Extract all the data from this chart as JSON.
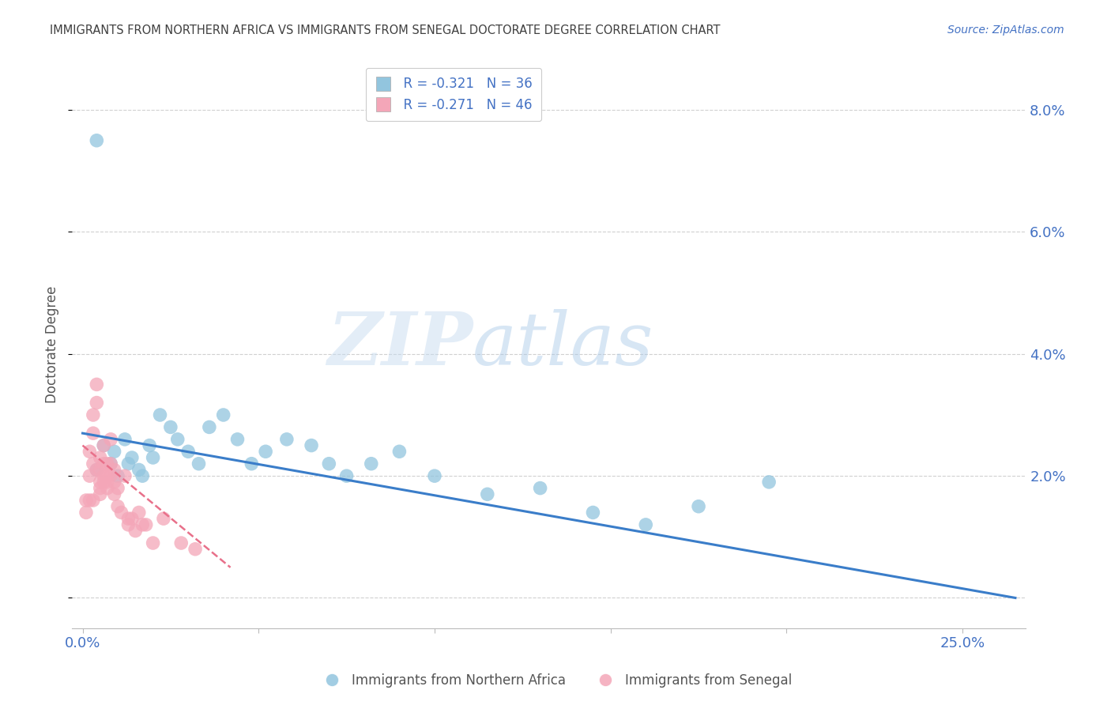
{
  "title": "IMMIGRANTS FROM NORTHERN AFRICA VS IMMIGRANTS FROM SENEGAL DOCTORATE DEGREE CORRELATION CHART",
  "source": "Source: ZipAtlas.com",
  "ylabel_left": "Doctorate Degree",
  "x_ticks": [
    0.0,
    0.05,
    0.1,
    0.15,
    0.2,
    0.25
  ],
  "x_tick_labels_show": [
    "0.0%",
    "",
    "",
    "",
    "",
    "25.0%"
  ],
  "y_ticks_right": [
    0.0,
    0.02,
    0.04,
    0.06,
    0.08
  ],
  "y_tick_labels_right": [
    "",
    "2.0%",
    "4.0%",
    "6.0%",
    "8.0%"
  ],
  "xlim": [
    -0.003,
    0.268
  ],
  "ylim": [
    -0.005,
    0.088
  ],
  "R_blue": -0.321,
  "N_blue": 36,
  "R_pink": -0.271,
  "N_pink": 46,
  "legend_label_blue": "Immigrants from Northern Africa",
  "legend_label_pink": "Immigrants from Senegal",
  "blue_color": "#92c5de",
  "pink_color": "#f4a6b8",
  "trend_blue_color": "#3a7dc9",
  "trend_pink_color": "#e8708a",
  "watermark_zip": "ZIP",
  "watermark_atlas": "atlas",
  "background_color": "#ffffff",
  "grid_color": "#d0d0d0",
  "title_color": "#404040",
  "source_color": "#4472c4",
  "tick_label_color": "#4472c4",
  "blue_x": [
    0.004,
    0.006,
    0.008,
    0.009,
    0.01,
    0.012,
    0.013,
    0.014,
    0.016,
    0.017,
    0.019,
    0.02,
    0.022,
    0.025,
    0.027,
    0.03,
    0.033,
    0.036,
    0.04,
    0.044,
    0.048,
    0.052,
    0.058,
    0.065,
    0.07,
    0.075,
    0.082,
    0.09,
    0.1,
    0.115,
    0.13,
    0.145,
    0.16,
    0.175,
    0.195,
    0.004
  ],
  "blue_y": [
    0.021,
    0.025,
    0.022,
    0.024,
    0.02,
    0.026,
    0.022,
    0.023,
    0.021,
    0.02,
    0.025,
    0.023,
    0.03,
    0.028,
    0.026,
    0.024,
    0.022,
    0.028,
    0.03,
    0.026,
    0.022,
    0.024,
    0.026,
    0.025,
    0.022,
    0.02,
    0.022,
    0.024,
    0.02,
    0.017,
    0.018,
    0.014,
    0.012,
    0.015,
    0.019,
    0.075
  ],
  "pink_x": [
    0.001,
    0.001,
    0.002,
    0.002,
    0.002,
    0.003,
    0.003,
    0.003,
    0.003,
    0.004,
    0.004,
    0.004,
    0.005,
    0.005,
    0.005,
    0.005,
    0.005,
    0.006,
    0.006,
    0.006,
    0.006,
    0.007,
    0.007,
    0.007,
    0.007,
    0.008,
    0.008,
    0.008,
    0.009,
    0.009,
    0.009,
    0.01,
    0.01,
    0.011,
    0.012,
    0.013,
    0.013,
    0.014,
    0.015,
    0.016,
    0.017,
    0.018,
    0.02,
    0.023,
    0.028,
    0.032
  ],
  "pink_y": [
    0.014,
    0.016,
    0.02,
    0.024,
    0.016,
    0.03,
    0.027,
    0.022,
    0.016,
    0.035,
    0.032,
    0.021,
    0.023,
    0.021,
    0.019,
    0.018,
    0.017,
    0.025,
    0.022,
    0.02,
    0.019,
    0.022,
    0.02,
    0.019,
    0.018,
    0.026,
    0.022,
    0.02,
    0.021,
    0.019,
    0.017,
    0.018,
    0.015,
    0.014,
    0.02,
    0.013,
    0.012,
    0.013,
    0.011,
    0.014,
    0.012,
    0.012,
    0.009,
    0.013,
    0.009,
    0.008
  ]
}
